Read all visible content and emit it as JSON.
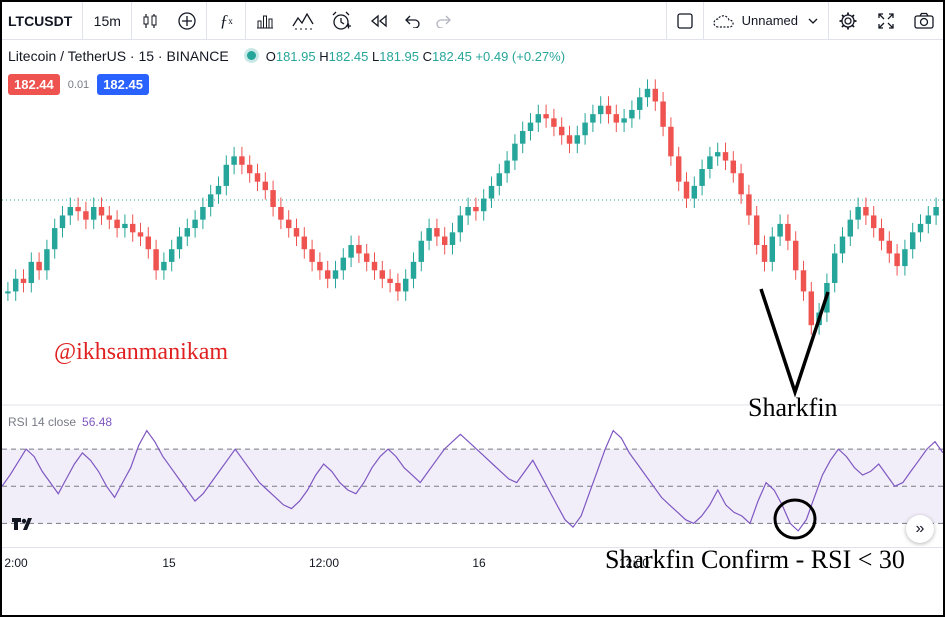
{
  "toolbar": {
    "symbol": "LTCUSDT",
    "interval": "15m",
    "layout_name": "Unnamed",
    "icons": [
      "candles-icon",
      "add-circle-icon",
      "fx-icon",
      "bar-chart-icon",
      "indicators-icon",
      "alarm-icon",
      "replay-icon",
      "undo-icon",
      "redo-icon",
      "fullscreen-square-icon",
      "cloud-icon",
      "chevron-down-icon",
      "gear-icon",
      "expand-icon",
      "camera-icon"
    ]
  },
  "legend": {
    "pair": "Litecoin / TetherUS · 15 · BINANCE",
    "open_label": "O",
    "open": "181.95",
    "high_label": "H",
    "high": "182.45",
    "low_label": "L",
    "low": "181.95",
    "close_label": "C",
    "close": "182.45",
    "change": "+0.49 (+0.27%)"
  },
  "prices": {
    "bid": "182.44",
    "spread": "0.01",
    "ask": "182.45"
  },
  "colors": {
    "up": "#26a69a",
    "down": "#ef5350",
    "rsi": "#7e57c2",
    "bid": "#ef5350",
    "ask": "#2962ff"
  },
  "rsi": {
    "label": "RSI 14 close",
    "value": "56.48"
  },
  "time_axis": {
    "labels": [
      "2:00",
      "15",
      "12:00",
      "16",
      "12:00"
    ]
  },
  "annotations": {
    "watermark": "@ikhsanmanikam",
    "sharkfin": "Sharkfin",
    "confirm": "Sharkfin Confirm - RSI < 30"
  },
  "chart_data": [
    {
      "type": "candlestick",
      "series": [
        {
          "name": "Litecoin / TetherUS",
          "values": [
            [
              0,
              0.3
            ],
            [
              1,
              0.36
            ],
            [
              2,
              0.34
            ],
            [
              3,
              0.44
            ],
            [
              4,
              0.4
            ],
            [
              5,
              0.5
            ],
            [
              6,
              0.6
            ],
            [
              7,
              0.66
            ],
            [
              8,
              0.7
            ],
            [
              9,
              0.68
            ],
            [
              10,
              0.64
            ],
            [
              11,
              0.7
            ],
            [
              12,
              0.66
            ],
            [
              13,
              0.64
            ],
            [
              14,
              0.6
            ],
            [
              15,
              0.62
            ],
            [
              16,
              0.58
            ],
            [
              17,
              0.56
            ],
            [
              18,
              0.5
            ],
            [
              19,
              0.4
            ],
            [
              20,
              0.44
            ],
            [
              21,
              0.5
            ],
            [
              22,
              0.56
            ],
            [
              23,
              0.6
            ],
            [
              24,
              0.64
            ],
            [
              25,
              0.7
            ],
            [
              26,
              0.76
            ],
            [
              27,
              0.8
            ],
            [
              28,
              0.9
            ],
            [
              29,
              0.94
            ],
            [
              30,
              0.9
            ],
            [
              31,
              0.86
            ],
            [
              32,
              0.82
            ],
            [
              33,
              0.78
            ],
            [
              34,
              0.7
            ],
            [
              35,
              0.64
            ],
            [
              36,
              0.6
            ],
            [
              37,
              0.56
            ],
            [
              38,
              0.5
            ],
            [
              39,
              0.44
            ],
            [
              40,
              0.4
            ],
            [
              41,
              0.36
            ],
            [
              42,
              0.4
            ],
            [
              43,
              0.46
            ],
            [
              44,
              0.52
            ],
            [
              45,
              0.48
            ],
            [
              46,
              0.44
            ],
            [
              47,
              0.4
            ],
            [
              48,
              0.36
            ],
            [
              49,
              0.34
            ],
            [
              50,
              0.3
            ],
            [
              51,
              0.36
            ],
            [
              52,
              0.44
            ],
            [
              53,
              0.54
            ],
            [
              54,
              0.6
            ],
            [
              55,
              0.56
            ],
            [
              56,
              0.52
            ],
            [
              57,
              0.58
            ],
            [
              58,
              0.66
            ],
            [
              59,
              0.7
            ],
            [
              60,
              0.68
            ],
            [
              61,
              0.74
            ],
            [
              62,
              0.8
            ],
            [
              63,
              0.86
            ],
            [
              64,
              0.92
            ],
            [
              65,
              1.0
            ],
            [
              66,
              1.06
            ],
            [
              67,
              1.1
            ],
            [
              68,
              1.14
            ],
            [
              69,
              1.12
            ],
            [
              70,
              1.08
            ],
            [
              71,
              1.04
            ],
            [
              72,
              1.0
            ],
            [
              73,
              1.04
            ],
            [
              74,
              1.1
            ],
            [
              75,
              1.14
            ],
            [
              76,
              1.18
            ],
            [
              77,
              1.14
            ],
            [
              78,
              1.1
            ],
            [
              79,
              1.12
            ],
            [
              80,
              1.16
            ],
            [
              81,
              1.22
            ],
            [
              82,
              1.26
            ],
            [
              83,
              1.2
            ],
            [
              84,
              1.08
            ],
            [
              85,
              0.94
            ],
            [
              86,
              0.82
            ],
            [
              87,
              0.74
            ],
            [
              88,
              0.8
            ],
            [
              89,
              0.88
            ],
            [
              90,
              0.94
            ],
            [
              91,
              0.96
            ],
            [
              92,
              0.92
            ],
            [
              93,
              0.86
            ],
            [
              94,
              0.76
            ],
            [
              95,
              0.66
            ],
            [
              96,
              0.52
            ],
            [
              97,
              0.44
            ],
            [
              98,
              0.56
            ],
            [
              99,
              0.62
            ],
            [
              100,
              0.54
            ],
            [
              101,
              0.4
            ],
            [
              102,
              0.3
            ],
            [
              103,
              0.14
            ],
            [
              104,
              0.2
            ],
            [
              105,
              0.34
            ],
            [
              106,
              0.48
            ],
            [
              107,
              0.56
            ],
            [
              108,
              0.64
            ],
            [
              109,
              0.7
            ],
            [
              110,
              0.66
            ],
            [
              111,
              0.6
            ],
            [
              112,
              0.54
            ],
            [
              113,
              0.48
            ],
            [
              114,
              0.42
            ],
            [
              115,
              0.5
            ],
            [
              116,
              0.58
            ],
            [
              117,
              0.62
            ],
            [
              118,
              0.66
            ],
            [
              119,
              0.7
            ]
          ]
        }
      ]
    },
    {
      "type": "line",
      "series": [
        {
          "name": "RSI 14 close",
          "values": [
            50,
            56,
            63,
            70,
            66,
            58,
            52,
            46,
            54,
            62,
            68,
            64,
            58,
            50,
            44,
            52,
            60,
            72,
            80,
            74,
            66,
            60,
            54,
            48,
            42,
            46,
            52,
            58,
            64,
            70,
            64,
            58,
            52,
            48,
            44,
            40,
            38,
            42,
            48,
            56,
            62,
            58,
            52,
            48,
            46,
            52,
            60,
            66,
            70,
            66,
            60,
            56,
            52,
            58,
            64,
            70,
            74,
            78,
            74,
            70,
            66,
            62,
            58,
            54,
            52,
            58,
            64,
            56,
            48,
            40,
            32,
            28,
            34,
            46,
            58,
            70,
            80,
            76,
            68,
            62,
            56,
            50,
            44,
            40,
            36,
            32,
            30,
            34,
            40,
            48,
            40,
            36,
            34,
            30,
            42,
            52,
            48,
            40,
            30,
            26,
            32,
            44,
            56,
            64,
            70,
            66,
            60,
            56,
            58,
            62,
            56,
            50,
            52,
            58,
            64,
            70,
            74,
            68
          ]
        }
      ],
      "ylim": [
        20,
        90
      ],
      "levels": [
        70,
        50,
        30
      ]
    }
  ]
}
